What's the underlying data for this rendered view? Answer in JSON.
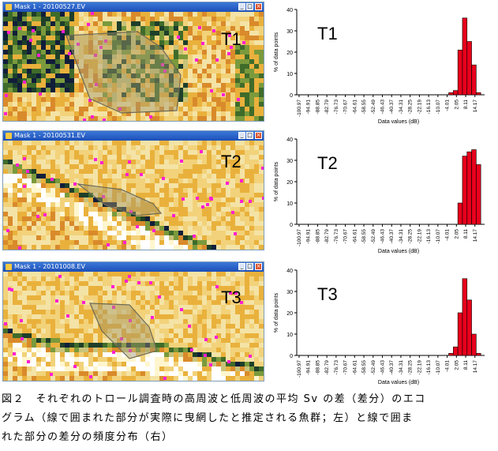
{
  "panels": [
    {
      "window_title": "Mask 1 - 20100527.EV",
      "label": "T1"
    },
    {
      "window_title": "Mask 1 - 20100531.EV",
      "label": "T2"
    },
    {
      "window_title": "Mask 1 - 20101008.EV",
      "label": "T3"
    }
  ],
  "chart_common": {
    "ylabel": "% of data points",
    "xlabel": "Data values (dB)",
    "yticks": [
      "0",
      "10",
      "20",
      "30",
      "40"
    ],
    "xticks": [
      "-100.97",
      "-94.91",
      "-88.85",
      "-82.79",
      "-76.73",
      "-70.67",
      "-64.61",
      "-58.55",
      "-52.49",
      "-46.43",
      "-40.37",
      "-34.31",
      "-28.25",
      "-22.19",
      "-16.13",
      "-10.07",
      "-4.01",
      "2.05",
      "8.11",
      "14.17"
    ],
    "bar_color": "#e8001c"
  },
  "chart_data": [
    {
      "type": "bar",
      "label": "T1",
      "ylabel": "% of data points",
      "xlabel": "Data values (dB)",
      "ylim": [
        0,
        40
      ],
      "bins": [
        {
          "x": -1.5,
          "y": 1
        },
        {
          "x": 1.5,
          "y": 2
        },
        {
          "x": 4.5,
          "y": 21
        },
        {
          "x": 7.5,
          "y": 36
        },
        {
          "x": 10.5,
          "y": 25
        },
        {
          "x": 13.5,
          "y": 14
        },
        {
          "x": 16.5,
          "y": 1
        }
      ]
    },
    {
      "type": "bar",
      "label": "T2",
      "ylabel": "% of data points",
      "xlabel": "Data values (dB)",
      "ylim": [
        0,
        40
      ],
      "bins": [
        {
          "x": 4.5,
          "y": 10
        },
        {
          "x": 7.5,
          "y": 32
        },
        {
          "x": 10.5,
          "y": 34
        },
        {
          "x": 13.5,
          "y": 35
        },
        {
          "x": 16.5,
          "y": 28
        }
      ]
    },
    {
      "type": "bar",
      "label": "T3",
      "ylabel": "% of data points",
      "xlabel": "Data values (dB)",
      "ylim": [
        0,
        40
      ],
      "bins": [
        {
          "x": -1.5,
          "y": 1
        },
        {
          "x": 1.5,
          "y": 4
        },
        {
          "x": 4.5,
          "y": 20
        },
        {
          "x": 7.5,
          "y": 36
        },
        {
          "x": 10.5,
          "y": 26
        },
        {
          "x": 13.5,
          "y": 10
        },
        {
          "x": 16.5,
          "y": 1
        }
      ]
    }
  ],
  "caption": {
    "line1": "図２　それぞれのトロール調査時の高周波と低周波の平均 Sv の差（差分）のエコ",
    "line2": "グラム（線で囲まれた部分が実際に曳網したと推定される魚群；左）と線で囲ま",
    "line3": "れた部分の差分の頻度分布（右）"
  }
}
